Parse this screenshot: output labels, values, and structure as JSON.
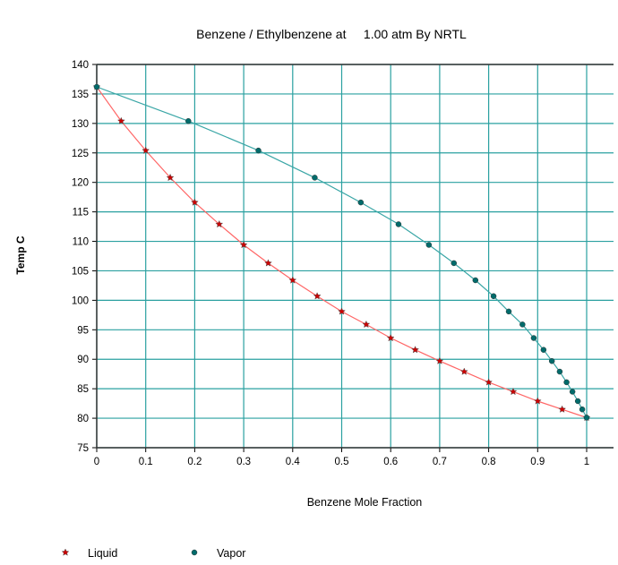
{
  "chart_data": {
    "type": "line",
    "title": "Benzene / Ethylbenzene at     1.00 atm By NRTL",
    "xlabel": "Benzene Mole Fraction",
    "ylabel": "Temp C",
    "xlim": [
      0,
      1
    ],
    "ylim": [
      75,
      140
    ],
    "xticks": [
      "0",
      "0.1",
      "0.2",
      "0.3",
      "0.4",
      "0.5",
      "0.6",
      "0.7",
      "0.8",
      "0.9",
      "1"
    ],
    "yticks": [
      "75",
      "80",
      "85",
      "90",
      "95",
      "100",
      "105",
      "110",
      "115",
      "120",
      "125",
      "130",
      "135",
      "140"
    ],
    "grid": true,
    "legend_position": "bottom-left",
    "series": [
      {
        "name": "Liquid",
        "marker": "star",
        "line_color": "#ff6666",
        "marker_color": "#cc0000",
        "x": [
          0,
          0.05,
          0.1,
          0.15,
          0.2,
          0.25,
          0.3,
          0.35,
          0.4,
          0.45,
          0.5,
          0.55,
          0.6,
          0.65,
          0.7,
          0.75,
          0.8,
          0.85,
          0.9,
          0.95,
          1
        ],
        "y": [
          136.2,
          130.4,
          125.4,
          120.8,
          116.6,
          112.9,
          109.4,
          106.3,
          103.4,
          100.7,
          98.1,
          95.9,
          93.6,
          91.6,
          89.7,
          87.9,
          86.1,
          84.5,
          82.9,
          81.5,
          80.1
        ]
      },
      {
        "name": "Vapor",
        "marker": "circle",
        "line_color": "#3aa6a6",
        "marker_color": "#006b6b",
        "x": [
          0,
          0.187,
          0.33,
          0.445,
          0.539,
          0.616,
          0.678,
          0.729,
          0.773,
          0.81,
          0.841,
          0.869,
          0.892,
          0.912,
          0.929,
          0.945,
          0.959,
          0.971,
          0.982,
          0.991,
          1
        ],
        "y": [
          136.2,
          130.4,
          125.4,
          120.8,
          116.6,
          112.9,
          109.4,
          106.3,
          103.4,
          100.7,
          98.1,
          95.9,
          93.6,
          91.6,
          89.7,
          87.9,
          86.1,
          84.5,
          82.9,
          81.5,
          80.1
        ]
      }
    ]
  },
  "colors": {
    "grid": "#2aa0a0",
    "axis": "#333333"
  }
}
